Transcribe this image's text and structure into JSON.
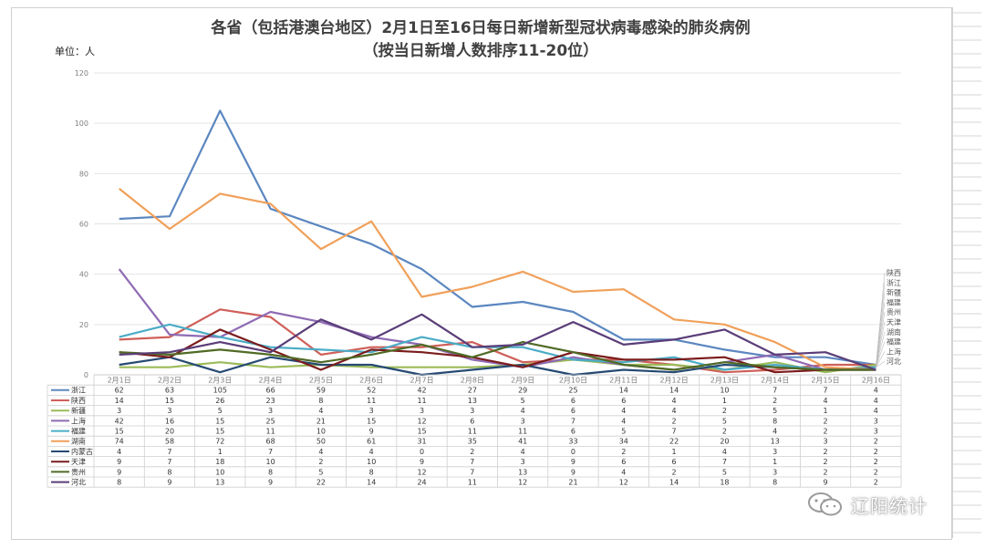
{
  "chart_data": {
    "type": "line",
    "title": "各省（包括港澳台地区）2月1日至16日每日新增新型冠状病毒感染的肺炎病例",
    "subtitle": "（按当日新增人数排序11-20位）",
    "unit_label": "单位：人",
    "ylim": [
      0,
      120
    ],
    "yticks": [
      0,
      20,
      40,
      60,
      80,
      100,
      120
    ],
    "categories": [
      "2月1日",
      "2月2日",
      "2月3日",
      "2月4日",
      "2月5日",
      "2月6日",
      "2月7日",
      "2月8日",
      "2月9日",
      "2月10日",
      "2月11日",
      "2月12日",
      "2月13日",
      "2月14日",
      "2月15日",
      "2月16日"
    ],
    "series": [
      {
        "name": "浙江",
        "color": "#5b87c0",
        "values": [
          62,
          63,
          105,
          66,
          59,
          52,
          42,
          27,
          29,
          25,
          14,
          14,
          10,
          7,
          7,
          4
        ]
      },
      {
        "name": "陕西",
        "color": "#cf5f59",
        "values": [
          14,
          15,
          26,
          23,
          8,
          11,
          11,
          13,
          5,
          6,
          6,
          4,
          1,
          2,
          4,
          4
        ]
      },
      {
        "name": "新疆",
        "color": "#9bbb59",
        "values": [
          3,
          3,
          5,
          3,
          4,
          3,
          3,
          3,
          4,
          6,
          4,
          4,
          2,
          5,
          1,
          4
        ]
      },
      {
        "name": "上海",
        "color": "#8e6bb4",
        "values": [
          42,
          16,
          15,
          25,
          21,
          15,
          12,
          6,
          3,
          7,
          4,
          2,
          5,
          8,
          2,
          3
        ]
      },
      {
        "name": "福建",
        "color": "#4bacc6",
        "values": [
          15,
          20,
          15,
          11,
          10,
          9,
          15,
          11,
          11,
          6,
          5,
          7,
          2,
          4,
          2,
          3
        ]
      },
      {
        "name": "湖南",
        "color": "#f0a05a",
        "values": [
          74,
          58,
          72,
          68,
          50,
          61,
          31,
          35,
          41,
          33,
          34,
          22,
          20,
          13,
          3,
          2
        ]
      },
      {
        "name": "内蒙古",
        "color": "#264a73",
        "values": [
          4,
          7,
          1,
          7,
          4,
          4,
          0,
          2,
          4,
          0,
          2,
          1,
          4,
          3,
          2,
          2
        ]
      },
      {
        "name": "天津",
        "color": "#7b1c1c",
        "values": [
          9,
          7,
          18,
          10,
          2,
          10,
          9,
          7,
          3,
          9,
          6,
          6,
          7,
          1,
          2,
          2
        ]
      },
      {
        "name": "贵州",
        "color": "#506b25",
        "values": [
          9,
          8,
          10,
          8,
          5,
          8,
          12,
          7,
          13,
          9,
          4,
          2,
          5,
          3,
          2,
          2
        ]
      },
      {
        "name": "河北",
        "color": "#5a3d78",
        "values": [
          8,
          9,
          13,
          9,
          22,
          14,
          24,
          11,
          12,
          21,
          12,
          14,
          18,
          8,
          9,
          2
        ]
      }
    ],
    "end_labels": [
      "陕西",
      "浙江",
      "新疆",
      "福建",
      "贵州",
      "天津",
      "湖南",
      "福建",
      "上海",
      "河北"
    ]
  },
  "watermark": {
    "text": "辽阳统计",
    "icon": "wechat-icon"
  }
}
